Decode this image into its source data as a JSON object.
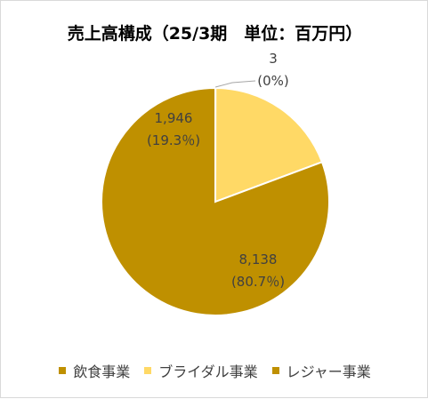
{
  "chart_data": {
    "type": "pie",
    "title": "売上高構成（25/3期　単位：百万円）",
    "categories": [
      "飲食事業",
      "ブライダル事業",
      "レジャー事業"
    ],
    "values": [
      3,
      1946,
      8138
    ],
    "percent_labels": [
      "(0%)",
      "(19.3％)",
      "(80.7％)"
    ],
    "value_labels": [
      "3",
      "1,946",
      "8,138"
    ],
    "colors": [
      "#bf9000",
      "#ffd966",
      "#bf9000"
    ],
    "legend_position": "bottom",
    "start_angle_deg": 0,
    "direction": "clockwise"
  }
}
